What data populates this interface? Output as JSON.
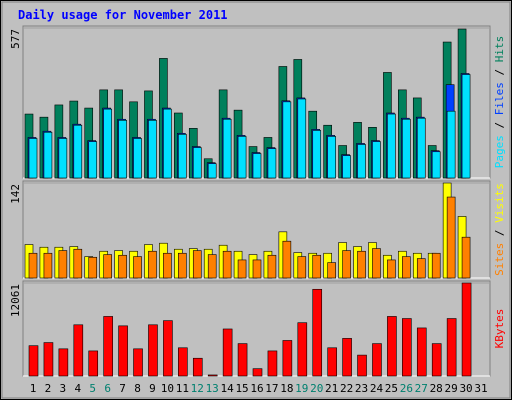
{
  "title": "Daily usage for November 2011",
  "separator": " / ",
  "categories": [
    "1",
    "2",
    "3",
    "4",
    "5",
    "6",
    "7",
    "8",
    "9",
    "10",
    "11",
    "12",
    "13",
    "14",
    "15",
    "16",
    "17",
    "18",
    "19",
    "20",
    "21",
    "22",
    "23",
    "24",
    "25",
    "26",
    "27",
    "28",
    "29",
    "30",
    "31"
  ],
  "category_colors": [
    "#000000",
    "#000000",
    "#000000",
    "#000000",
    "#00806f",
    "#00806f",
    "#000000",
    "#000000",
    "#000000",
    "#000000",
    "#000000",
    "#00806f",
    "#00806f",
    "#000000",
    "#000000",
    "#000000",
    "#000000",
    "#000000",
    "#00806f",
    "#00806f",
    "#000000",
    "#000000",
    "#000000",
    "#000000",
    "#000000",
    "#00806f",
    "#00806f",
    "#000000",
    "#000000",
    "#000000",
    "#000000"
  ],
  "chart_data": [
    {
      "type": "bar",
      "ylim": [
        0,
        577
      ],
      "yticks": [
        577
      ],
      "series": [
        {
          "name": "Hits",
          "color": "#00805c",
          "values": [
            246,
            234,
            281,
            296,
            269,
            339,
            339,
            293,
            335,
            460,
            250,
            191,
            74,
            339,
            261,
            121,
            156,
            429,
            456,
            257,
            203,
            125,
            214,
            195,
            406,
            339,
            308,
            125,
            523,
            573,
            null
          ]
        },
        {
          "name": "Files",
          "color": "#0040ff",
          "values": [
            156,
            180,
            156,
            207,
            144,
            269,
            226,
            156,
            226,
            269,
            172,
            121,
            59,
            230,
            164,
            98,
            117,
            297,
            308,
            187,
            164,
            90,
            133,
            144,
            250,
            230,
            234,
            105,
            359,
            402,
            null
          ]
        },
        {
          "name": "Pages",
          "color": "#00e0ff",
          "values": [
            152,
            176,
            152,
            203,
            140,
            265,
            222,
            152,
            222,
            265,
            168,
            117,
            55,
            226,
            160,
            94,
            113,
            293,
            304,
            183,
            160,
            86,
            129,
            140,
            246,
            226,
            230,
            101,
            257,
            398,
            null
          ]
        }
      ]
    },
    {
      "type": "bar",
      "ylim": [
        0,
        142
      ],
      "yticks": [
        142
      ],
      "series": [
        {
          "name": "Visits",
          "color": "#ffff00",
          "values": [
            50,
            46,
            46,
            47,
            32,
            40,
            41,
            40,
            50,
            52,
            43,
            44,
            43,
            49,
            40,
            35,
            40,
            69,
            38,
            37,
            37,
            53,
            47,
            53,
            34,
            40,
            37,
            37,
            142,
            92,
            null
          ]
        },
        {
          "name": "Sites",
          "color": "#ff8000",
          "values": [
            37,
            37,
            41,
            43,
            31,
            35,
            34,
            32,
            40,
            37,
            37,
            41,
            35,
            40,
            27,
            27,
            34,
            55,
            32,
            34,
            23,
            41,
            40,
            44,
            27,
            32,
            29,
            37,
            121,
            61,
            null
          ]
        }
      ]
    },
    {
      "type": "bar",
      "ylim": [
        0,
        12061
      ],
      "yticks": [
        12061
      ],
      "series": [
        {
          "name": "KBytes",
          "color": "#ff0000",
          "values": [
            3929,
            4336,
            3523,
            6640,
            3252,
            7724,
            6504,
            3523,
            6640,
            7181,
            3659,
            2304,
            136,
            6098,
            4201,
            949,
            3252,
            4607,
            6911,
            11247,
            3659,
            4878,
            2710,
            4201,
            7724,
            7453,
            6233,
            4201,
            7453,
            12061,
            null
          ]
        }
      ]
    }
  ]
}
